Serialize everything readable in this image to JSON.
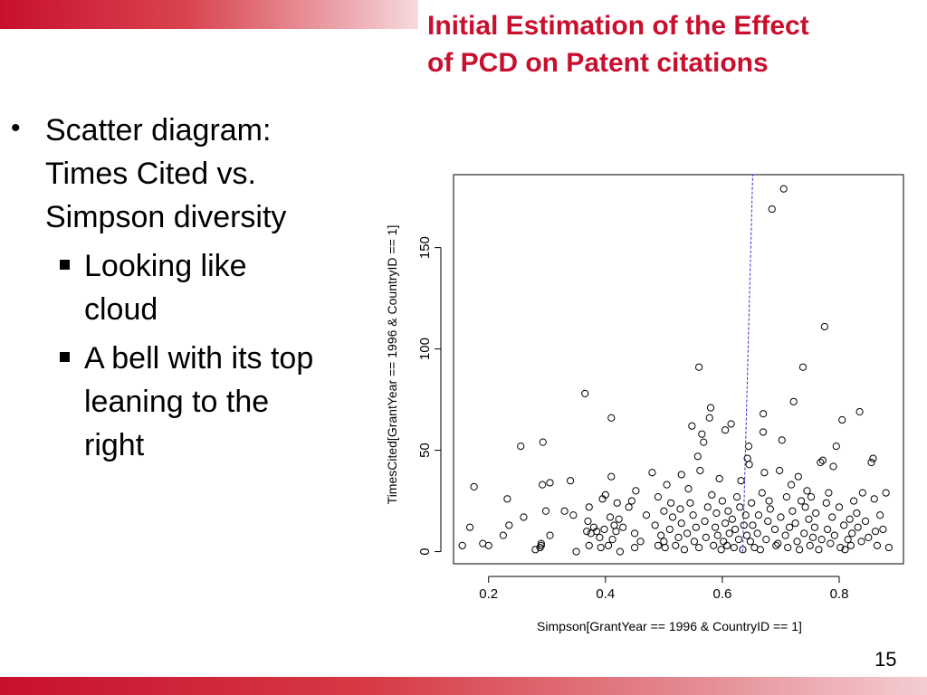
{
  "slide": {
    "title_line1": "Initial Estimation of the Effect",
    "title_line2": "of PCD on Patent citations",
    "page_number": "15"
  },
  "bullets": {
    "main": [
      "Scatter diagram:",
      "Times Cited vs.",
      "Simpson diversity"
    ],
    "sub": [
      [
        "Looking like",
        "cloud"
      ],
      [
        "A bell with its top",
        "leaning to the",
        "right"
      ]
    ]
  },
  "colors": {
    "accent": "#c8102e",
    "line": "#2b2bd6"
  },
  "chart_data": {
    "type": "scatter",
    "title": "",
    "xlabel": "Simpson[GrantYear == 1996 & CountryID == 1]",
    "ylabel": "TimesCited[GrantYear == 1996 & CountryID == 1]",
    "xlim": [
      0.14,
      0.91
    ],
    "ylim": [
      -6,
      186
    ],
    "x_ticks": [
      0.2,
      0.4,
      0.6,
      0.8
    ],
    "x_tick_labels": [
      "0.2",
      "0.4",
      "0.6",
      "0.8"
    ],
    "y_ticks": [
      0,
      50,
      100,
      150
    ],
    "y_tick_labels": [
      "0",
      "50",
      "100",
      "150"
    ],
    "grid": false,
    "vertical_line": {
      "x1": 0.635,
      "y1": 0,
      "x2": 0.652,
      "y2": 186
    },
    "points": [
      [
        0.155,
        3
      ],
      [
        0.168,
        12
      ],
      [
        0.175,
        32
      ],
      [
        0.19,
        4
      ],
      [
        0.2,
        3
      ],
      [
        0.225,
        8
      ],
      [
        0.232,
        26
      ],
      [
        0.235,
        13
      ],
      [
        0.255,
        52
      ],
      [
        0.26,
        17
      ],
      [
        0.28,
        1
      ],
      [
        0.288,
        2
      ],
      [
        0.29,
        3
      ],
      [
        0.29,
        4
      ],
      [
        0.292,
        33
      ],
      [
        0.293,
        54
      ],
      [
        0.298,
        20
      ],
      [
        0.305,
        8
      ],
      [
        0.305,
        34
      ],
      [
        0.33,
        20
      ],
      [
        0.34,
        35
      ],
      [
        0.345,
        18
      ],
      [
        0.35,
        0
      ],
      [
        0.365,
        78
      ],
      [
        0.368,
        10
      ],
      [
        0.37,
        15
      ],
      [
        0.372,
        22
      ],
      [
        0.372,
        3
      ],
      [
        0.375,
        9
      ],
      [
        0.38,
        12
      ],
      [
        0.385,
        10
      ],
      [
        0.39,
        7
      ],
      [
        0.392,
        2
      ],
      [
        0.395,
        26
      ],
      [
        0.398,
        11
      ],
      [
        0.4,
        28
      ],
      [
        0.405,
        3
      ],
      [
        0.408,
        17
      ],
      [
        0.41,
        37
      ],
      [
        0.41,
        66
      ],
      [
        0.412,
        6
      ],
      [
        0.415,
        13
      ],
      [
        0.418,
        10
      ],
      [
        0.42,
        24
      ],
      [
        0.423,
        16
      ],
      [
        0.425,
        0
      ],
      [
        0.43,
        12
      ],
      [
        0.44,
        22
      ],
      [
        0.445,
        25
      ],
      [
        0.45,
        2
      ],
      [
        0.45,
        9
      ],
      [
        0.452,
        30
      ],
      [
        0.46,
        5
      ],
      [
        0.47,
        18
      ],
      [
        0.48,
        39
      ],
      [
        0.485,
        13
      ],
      [
        0.49,
        3
      ],
      [
        0.49,
        27
      ],
      [
        0.495,
        8
      ],
      [
        0.5,
        20
      ],
      [
        0.5,
        5
      ],
      [
        0.502,
        2
      ],
      [
        0.505,
        33
      ],
      [
        0.51,
        11
      ],
      [
        0.512,
        24
      ],
      [
        0.515,
        17
      ],
      [
        0.52,
        3
      ],
      [
        0.525,
        7
      ],
      [
        0.528,
        21
      ],
      [
        0.53,
        14
      ],
      [
        0.53,
        38
      ],
      [
        0.535,
        1
      ],
      [
        0.54,
        9
      ],
      [
        0.542,
        31
      ],
      [
        0.545,
        24
      ],
      [
        0.548,
        62
      ],
      [
        0.55,
        18
      ],
      [
        0.552,
        5
      ],
      [
        0.555,
        12
      ],
      [
        0.558,
        47
      ],
      [
        0.56,
        91
      ],
      [
        0.56,
        2
      ],
      [
        0.562,
        40
      ],
      [
        0.565,
        58
      ],
      [
        0.568,
        54
      ],
      [
        0.57,
        15
      ],
      [
        0.572,
        7
      ],
      [
        0.575,
        22
      ],
      [
        0.578,
        66
      ],
      [
        0.58,
        71
      ],
      [
        0.582,
        28
      ],
      [
        0.585,
        3
      ],
      [
        0.588,
        12
      ],
      [
        0.59,
        19
      ],
      [
        0.592,
        8
      ],
      [
        0.595,
        36
      ],
      [
        0.598,
        1
      ],
      [
        0.6,
        25
      ],
      [
        0.602,
        5
      ],
      [
        0.605,
        14
      ],
      [
        0.605,
        60
      ],
      [
        0.608,
        3
      ],
      [
        0.61,
        20
      ],
      [
        0.612,
        9
      ],
      [
        0.615,
        63
      ],
      [
        0.617,
        16
      ],
      [
        0.62,
        2
      ],
      [
        0.622,
        11
      ],
      [
        0.625,
        27
      ],
      [
        0.628,
        6
      ],
      [
        0.63,
        22
      ],
      [
        0.632,
        35
      ],
      [
        0.635,
        1
      ],
      [
        0.637,
        13
      ],
      [
        0.64,
        18
      ],
      [
        0.642,
        8
      ],
      [
        0.643,
        46
      ],
      [
        0.645,
        52
      ],
      [
        0.646,
        43
      ],
      [
        0.648,
        5
      ],
      [
        0.65,
        24
      ],
      [
        0.652,
        13
      ],
      [
        0.655,
        2
      ],
      [
        0.66,
        9
      ],
      [
        0.662,
        18
      ],
      [
        0.665,
        1
      ],
      [
        0.668,
        29
      ],
      [
        0.67,
        59
      ],
      [
        0.67,
        68
      ],
      [
        0.672,
        39
      ],
      [
        0.675,
        6
      ],
      [
        0.678,
        15
      ],
      [
        0.68,
        25
      ],
      [
        0.682,
        21
      ],
      [
        0.685,
        169
      ],
      [
        0.69,
        11
      ],
      [
        0.692,
        3
      ],
      [
        0.695,
        4
      ],
      [
        0.698,
        40
      ],
      [
        0.7,
        17
      ],
      [
        0.702,
        55
      ],
      [
        0.705,
        179
      ],
      [
        0.708,
        8
      ],
      [
        0.71,
        27
      ],
      [
        0.712,
        2
      ],
      [
        0.715,
        12
      ],
      [
        0.718,
        33
      ],
      [
        0.72,
        20
      ],
      [
        0.722,
        74
      ],
      [
        0.725,
        14
      ],
      [
        0.728,
        5
      ],
      [
        0.73,
        37
      ],
      [
        0.732,
        1
      ],
      [
        0.735,
        25
      ],
      [
        0.738,
        91
      ],
      [
        0.74,
        9
      ],
      [
        0.742,
        22
      ],
      [
        0.745,
        30
      ],
      [
        0.748,
        16
      ],
      [
        0.75,
        3
      ],
      [
        0.752,
        27
      ],
      [
        0.755,
        7
      ],
      [
        0.758,
        12
      ],
      [
        0.76,
        19
      ],
      [
        0.765,
        1
      ],
      [
        0.768,
        44
      ],
      [
        0.77,
        6
      ],
      [
        0.772,
        45
      ],
      [
        0.775,
        111
      ],
      [
        0.778,
        24
      ],
      [
        0.78,
        11
      ],
      [
        0.782,
        29
      ],
      [
        0.785,
        4
      ],
      [
        0.788,
        17
      ],
      [
        0.79,
        42
      ],
      [
        0.792,
        8
      ],
      [
        0.795,
        52
      ],
      [
        0.8,
        22
      ],
      [
        0.802,
        2
      ],
      [
        0.805,
        65
      ],
      [
        0.808,
        13
      ],
      [
        0.81,
        1
      ],
      [
        0.815,
        6
      ],
      [
        0.818,
        16
      ],
      [
        0.82,
        3
      ],
      [
        0.822,
        9
      ],
      [
        0.825,
        25
      ],
      [
        0.83,
        19
      ],
      [
        0.832,
        12
      ],
      [
        0.835,
        69
      ],
      [
        0.838,
        5
      ],
      [
        0.84,
        29
      ],
      [
        0.845,
        15
      ],
      [
        0.85,
        7
      ],
      [
        0.855,
        44
      ],
      [
        0.858,
        46
      ],
      [
        0.86,
        26
      ],
      [
        0.862,
        10
      ],
      [
        0.865,
        3
      ],
      [
        0.87,
        18
      ],
      [
        0.875,
        11
      ],
      [
        0.88,
        29
      ],
      [
        0.885,
        2
      ]
    ]
  }
}
